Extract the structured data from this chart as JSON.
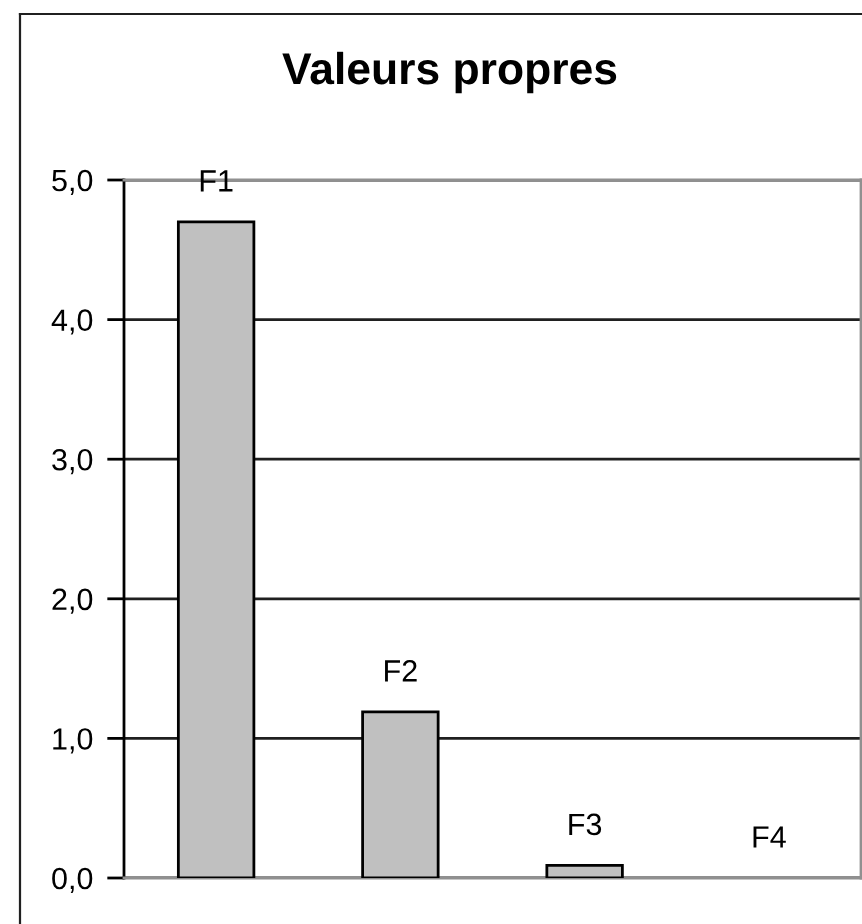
{
  "chart_data": {
    "type": "bar",
    "title": "Valeurs propres",
    "categories": [
      "F1",
      "F2",
      "F3",
      "F4"
    ],
    "values": [
      4.7,
      1.19,
      0.09,
      0
    ],
    "color": "#c0c0c0",
    "ylim": [
      0,
      5
    ],
    "yticks": [
      {
        "value": 0,
        "label": "0,0"
      },
      {
        "value": 1,
        "label": "1,0"
      },
      {
        "value": 2,
        "label": "2,0"
      },
      {
        "value": 3,
        "label": "3,0"
      },
      {
        "value": 4,
        "label": "4,0"
      },
      {
        "value": 5,
        "label": "5,0"
      }
    ],
    "grid": "y",
    "tick_labels": "y",
    "legend": false
  }
}
